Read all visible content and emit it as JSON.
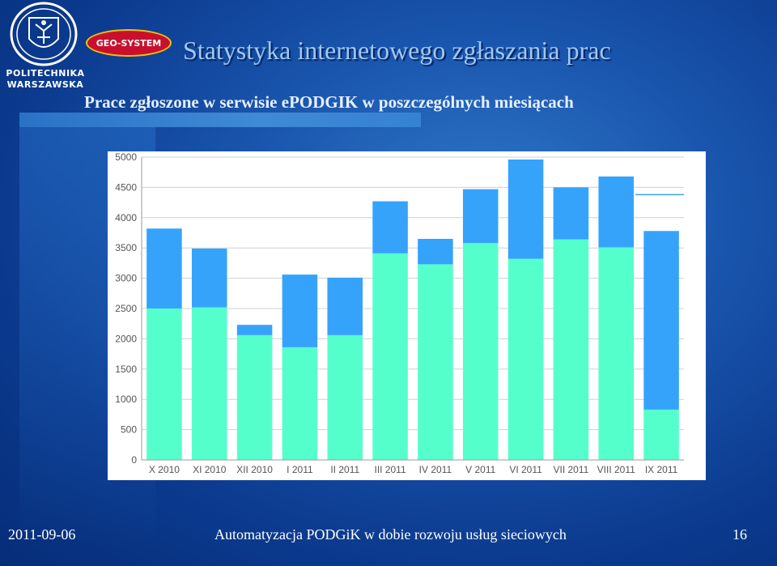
{
  "logos": {
    "university_line1": "POLITECHNIKA",
    "university_line2": "WARSZAWSKA",
    "company": "GEO-SYSTEM"
  },
  "slide": {
    "title": "Statystyka internetowego zgłaszania prac",
    "subtitle": "Prace zgłoszone w serwisie ePODGIK w poszczególnych miesiącach"
  },
  "footer": {
    "date": "2011-09-06",
    "center": "Automatyzacja PODGiK w dobie rozwoju usług sieciowych",
    "page": "16"
  },
  "colors": {
    "series_bottom": "#55ffcc",
    "series_top": "#36a3fb",
    "grid": "#d0d0d0",
    "axis_text": "#555555"
  },
  "chart_data": {
    "type": "bar",
    "stacked": true,
    "categories": [
      "X 2010",
      "XI 2010",
      "XII 2010",
      "I 2011",
      "II 2011",
      "III 2011",
      "IV 2011",
      "V 2011",
      "VI 2011",
      "VII 2011",
      "VIII 2011",
      "IX 2011"
    ],
    "series": [
      {
        "values": [
          2500,
          2520,
          2060,
          1860,
          2060,
          3410,
          3230,
          3580,
          3320,
          3640,
          3510,
          830
        ]
      },
      {
        "values": [
          1320,
          970,
          170,
          1200,
          950,
          860,
          420,
          890,
          1640,
          860,
          1170,
          2950
        ]
      }
    ],
    "ylim": [
      0,
      5000
    ],
    "yticks": [
      "0",
      "500",
      "1000",
      "1500",
      "2000",
      "2500",
      "3000",
      "3500",
      "4000",
      "4500",
      "5000"
    ],
    "reference_line": 4380,
    "grid": true,
    "legend": "none"
  }
}
